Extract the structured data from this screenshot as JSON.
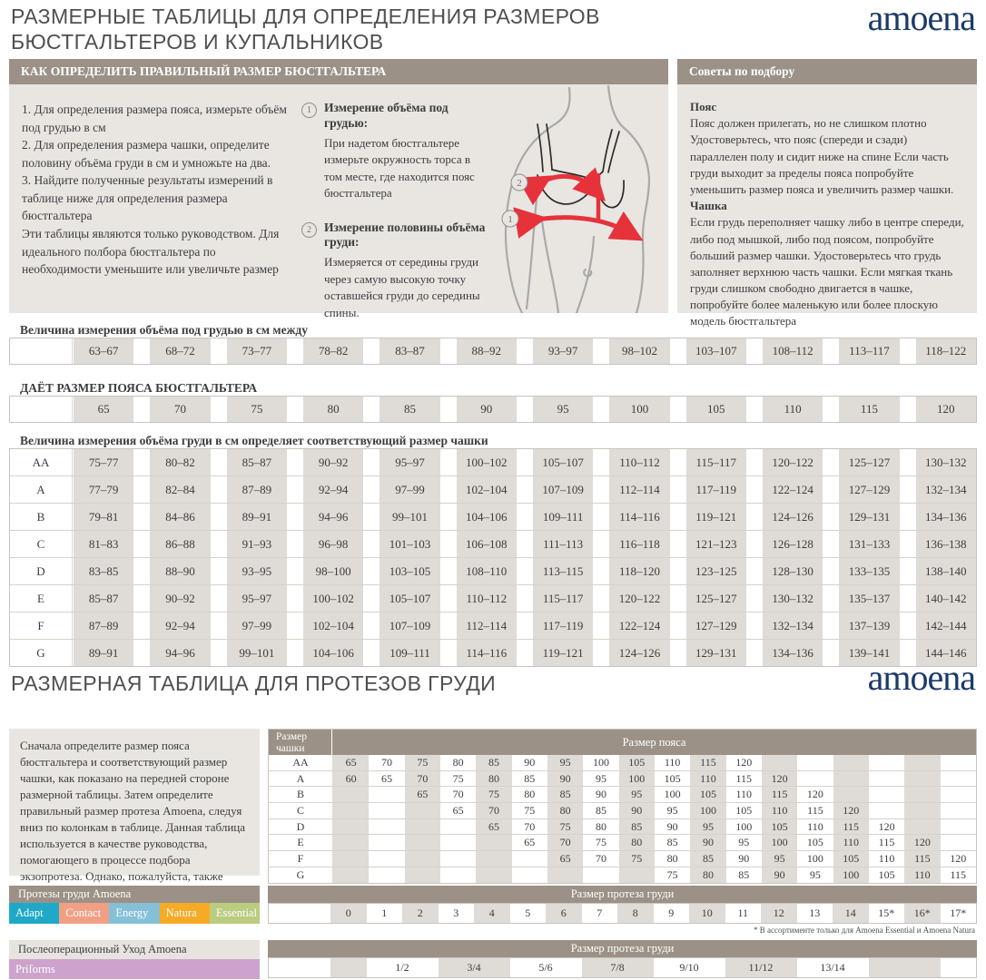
{
  "header": {
    "title_line1": "РАЗМЕРНЫЕ ТАБЛИЦЫ ДЛЯ ОПРЕДЕЛЕНИЯ РАЗМЕРОВ",
    "title_line2": "БЮСТГАЛЬТЕРОВ И КУПАЛЬНИКОВ",
    "brand": "amoena"
  },
  "colors": {
    "taupe_header": "#9c9186",
    "cell_gray": "#dfdbd6",
    "panel_gray": "#e9e6e2",
    "brand_navy": "#1c3a69",
    "arrow_red": "#e6323a",
    "aftercare_lavender": "#cda3cd"
  },
  "how_to": {
    "header": "КАК ОПРЕДЕЛИТЬ ПРАВИЛЬНЫЙ РАЗМЕР БЮСТГАЛЬТЕРА",
    "steps": [
      "1. Для определения размера пояса, измерьте объём под грудью в см",
      "2.  Для определения размера чашки, определите половину объёма груди в см и умножьте на два.",
      "3.  Найдите полученные результаты измерений в таблице ниже для определения размера бюстгальтера",
      "Эти таблицы являются только руководством. Для идеального полбора бюстгальтера по необходимости уменьшите или увеличьте размер"
    ],
    "measure1": {
      "num": "1",
      "title": "Измерение объёма под грудью:",
      "text": "При надетом бюстгальтере измерьте окружность торса в том месте, где находится пояс бюстгальтера"
    },
    "measure2": {
      "num": "2",
      "title": "Измерение половины объёма груди:",
      "text": "Измеряется от середины груди через самую высокую точку оставшейся груди до середины спины."
    },
    "figure_marker_upper": "2",
    "figure_marker_lower": "1"
  },
  "tips": {
    "header": "Советы по подбору",
    "belt_title": "Пояс",
    "belt_text": "Пояс должен прилегать, но не слишком плотно Удостоверьтесь, что пояс (спереди и сзади) параллелен полу и сидит ниже на спине Если часть груди выходит за пределы пояса попробуйте уменьшить размер пояса и увеличить размер чашки.",
    "cup_title": "Чашка",
    "cup_text": "Если грудь переполняет чашку либо в центре спереди, либо под мышкой, либо под поясом, попробуйте больший размер чашки. Удостоверьтесь что грудь заполняет верхнюю часть чашки. Если мягкая ткань груди слишком свободно двигается в чашке, попробуйте более маленькую или более плоскую модель бюстгальтера"
  },
  "size_tables": {
    "underbust_label": "Величина измерения объёма под грудью в см между",
    "underbust_ranges": [
      "63–67",
      "68–72",
      "73–77",
      "78–82",
      "83–87",
      "88–92",
      "93–97",
      "98–102",
      "103–107",
      "108–112",
      "113–117",
      "118–122"
    ],
    "band_label": "ДАЁТ РАЗМЕР ПОЯСА БЮСТГАЛЬТЕРА",
    "band_sizes": [
      "65",
      "70",
      "75",
      "80",
      "85",
      "90",
      "95",
      "100",
      "105",
      "110",
      "115",
      "120"
    ],
    "cup_label": "Величина измерения объёма груди в см определяет соответствующий размер чашки",
    "cup_rows": [
      {
        "cup": "AA",
        "ranges": [
          "75–77",
          "80–82",
          "85–87",
          "90–92",
          "95–97",
          "100–102",
          "105–107",
          "110–112",
          "115–117",
          "120–122",
          "125–127",
          "130–132"
        ]
      },
      {
        "cup": "A",
        "ranges": [
          "77–79",
          "82–84",
          "87–89",
          "92–94",
          "97–99",
          "102–104",
          "107–109",
          "112–114",
          "117–119",
          "122–124",
          "127–129",
          "132–134"
        ]
      },
      {
        "cup": "B",
        "ranges": [
          "79–81",
          "84–86",
          "89–91",
          "94–96",
          "99–101",
          "104–106",
          "109–111",
          "114–116",
          "119–121",
          "124–126",
          "129–131",
          "134–136"
        ]
      },
      {
        "cup": "C",
        "ranges": [
          "81–83",
          "86–88",
          "91–93",
          "96–98",
          "101–103",
          "106–108",
          "111–113",
          "116–118",
          "121–123",
          "126–128",
          "131–133",
          "136–138"
        ]
      },
      {
        "cup": "D",
        "ranges": [
          "83–85",
          "88–90",
          "93–95",
          "98–100",
          "103–105",
          "108–110",
          "113–115",
          "118–120",
          "123–125",
          "128–130",
          "133–135",
          "138–140"
        ]
      },
      {
        "cup": "E",
        "ranges": [
          "85–87",
          "90–92",
          "95–97",
          "100–102",
          "105–107",
          "110–112",
          "115–117",
          "120–122",
          "125–127",
          "130–132",
          "135–137",
          "140–142"
        ]
      },
      {
        "cup": "F",
        "ranges": [
          "87–89",
          "92–94",
          "97–99",
          "102–104",
          "107–109",
          "112–114",
          "117–119",
          "122–124",
          "127–129",
          "132–134",
          "137–139",
          "142–144"
        ]
      },
      {
        "cup": "G",
        "ranges": [
          "89–91",
          "94–96",
          "99–101",
          "104–106",
          "109–111",
          "114–116",
          "119–121",
          "124–126",
          "129–131",
          "134–136",
          "139–141",
          "144–146"
        ]
      }
    ]
  },
  "prosthesis": {
    "section_title": "РАЗМЕРНАЯ ТАБЛИЦА ДЛЯ ПРОТЕЗОВ ГРУДИ",
    "intro": "Сначала определите размер пояса бюстгальтера и соответствующий размер чашки, как показано на передней стороне размерной таблицы. Затем определите правильный размер протеза Amoena, следуя вниз по колонкам в таблице. Данная таблица используется в качестве руководства, помогающего в процессе подбора экзопротеза. Однако, пожалуйста, также полагайтесь на свой опыт и индивидуальные ощущения.",
    "cup_header": "Размер чашки",
    "band_header": "Размер пояса",
    "columns": 18,
    "rows": [
      {
        "cup": "AA",
        "start": 0,
        "values": [
          "65",
          "70",
          "75",
          "80",
          "85",
          "90",
          "95",
          "100",
          "105",
          "110",
          "115",
          "120"
        ]
      },
      {
        "cup": "A",
        "start": 0,
        "values": [
          "60",
          "65",
          "70",
          "75",
          "80",
          "85",
          "90",
          "95",
          "100",
          "105",
          "110",
          "115",
          "120"
        ]
      },
      {
        "cup": "B",
        "start": 2,
        "values": [
          "65",
          "70",
          "75",
          "80",
          "85",
          "90",
          "95",
          "100",
          "105",
          "110",
          "115",
          "120"
        ]
      },
      {
        "cup": "C",
        "start": 3,
        "values": [
          "65",
          "70",
          "75",
          "80",
          "85",
          "90",
          "95",
          "100",
          "105",
          "110",
          "115",
          "120"
        ]
      },
      {
        "cup": "D",
        "start": 4,
        "values": [
          "65",
          "70",
          "75",
          "80",
          "85",
          "90",
          "95",
          "100",
          "105",
          "110",
          "115",
          "120"
        ]
      },
      {
        "cup": "E",
        "start": 5,
        "values": [
          "65",
          "70",
          "75",
          "80",
          "85",
          "90",
          "95",
          "100",
          "105",
          "110",
          "115",
          "120"
        ]
      },
      {
        "cup": "F",
        "start": 6,
        "values": [
          "65",
          "70",
          "75",
          "80",
          "85",
          "90",
          "95",
          "100",
          "105",
          "110",
          "115",
          "120"
        ]
      },
      {
        "cup": "G",
        "start": 9,
        "values": [
          "75",
          "80",
          "85",
          "90",
          "95",
          "100",
          "105",
          "110",
          "115"
        ]
      }
    ],
    "size_header": "Размер протеза груди",
    "sizes": [
      "0",
      "1",
      "2",
      "3",
      "4",
      "5",
      "6",
      "7",
      "8",
      "9",
      "10",
      "11",
      "12",
      "13",
      "14",
      "15*",
      "16*",
      "17*"
    ],
    "footnote": "* В ассортименте только для  Amoena Essential и Amoena Natura"
  },
  "products": {
    "header": "Протезы груди Amoena",
    "tags": [
      {
        "label": "Adapt",
        "color": "#1fa9c9"
      },
      {
        "label": "Contact",
        "color": "#f2a083"
      },
      {
        "label": "Energy",
        "color": "#85c0d8"
      },
      {
        "label": "Natura",
        "color": "#f6ab26"
      },
      {
        "label": "Essential",
        "color": "#bacc80"
      }
    ],
    "aftercare_header": "Послеоперационный Уход Amoena",
    "aftercare_tag": {
      "label": "Priforms",
      "color": "#cda3cd"
    },
    "bottom_size_header": "Размер протеза груди",
    "bottom_sizes": [
      "1/2",
      "3/4",
      "5/6",
      "7/8",
      "9/10",
      "11/12",
      "13/14"
    ]
  }
}
